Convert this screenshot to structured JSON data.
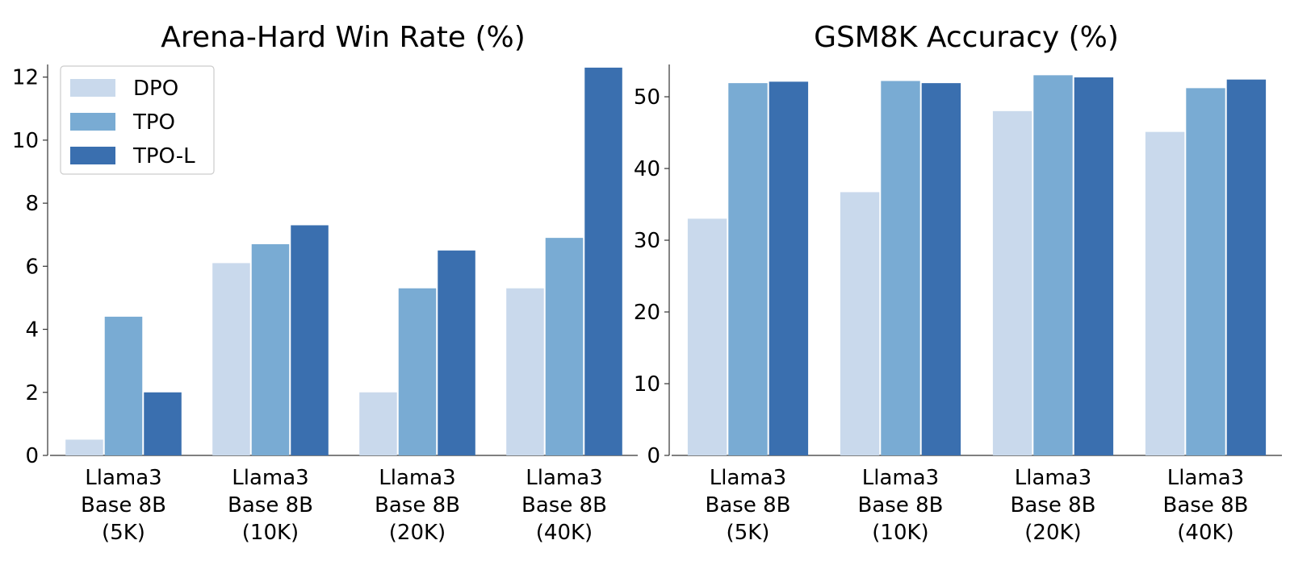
{
  "chart_data": [
    {
      "type": "bar",
      "title": "Arena-Hard Win Rate (%)",
      "xlabel": "",
      "ylabel": "",
      "categories": [
        [
          "Llama3",
          "Base 8B",
          "(5K)"
        ],
        [
          "Llama3",
          "Base 8B",
          "(10K)"
        ],
        [
          "Llama3",
          "Base 8B",
          "(20K)"
        ],
        [
          "Llama3",
          "Base 8B",
          "(40K)"
        ]
      ],
      "series": [
        {
          "name": "DPO",
          "color": "#c9d9ec",
          "values": [
            0.5,
            6.1,
            2.0,
            5.3
          ]
        },
        {
          "name": "TPO",
          "color": "#79abd3",
          "values": [
            4.4,
            6.7,
            5.3,
            6.9
          ]
        },
        {
          "name": "TPO-L",
          "color": "#3a6faf",
          "values": [
            2.0,
            7.3,
            6.5,
            12.3
          ]
        }
      ],
      "ylim": [
        0,
        12.4
      ],
      "yticks": [
        0,
        2,
        4,
        6,
        8,
        10,
        12
      ],
      "legend": "top-left",
      "grid": false
    },
    {
      "type": "bar",
      "title": "GSM8K Accuracy (%)",
      "xlabel": "",
      "ylabel": "",
      "categories": [
        [
          "Llama3",
          "Base 8B",
          "(5K)"
        ],
        [
          "Llama3",
          "Base 8B",
          "(10K)"
        ],
        [
          "Llama3",
          "Base 8B",
          "(20K)"
        ],
        [
          "Llama3",
          "Base 8B",
          "(40K)"
        ]
      ],
      "series": [
        {
          "name": "DPO",
          "color": "#c9d9ec",
          "values": [
            33.0,
            36.7,
            48.0,
            45.1
          ]
        },
        {
          "name": "TPO",
          "color": "#79abd3",
          "values": [
            51.9,
            52.2,
            53.0,
            51.2
          ]
        },
        {
          "name": "TPO-L",
          "color": "#3a6faf",
          "values": [
            52.1,
            51.9,
            52.7,
            52.4
          ]
        }
      ],
      "ylim": [
        0,
        54.5
      ],
      "yticks": [
        0,
        10,
        20,
        30,
        40,
        50
      ],
      "legend": "none",
      "grid": false
    }
  ]
}
